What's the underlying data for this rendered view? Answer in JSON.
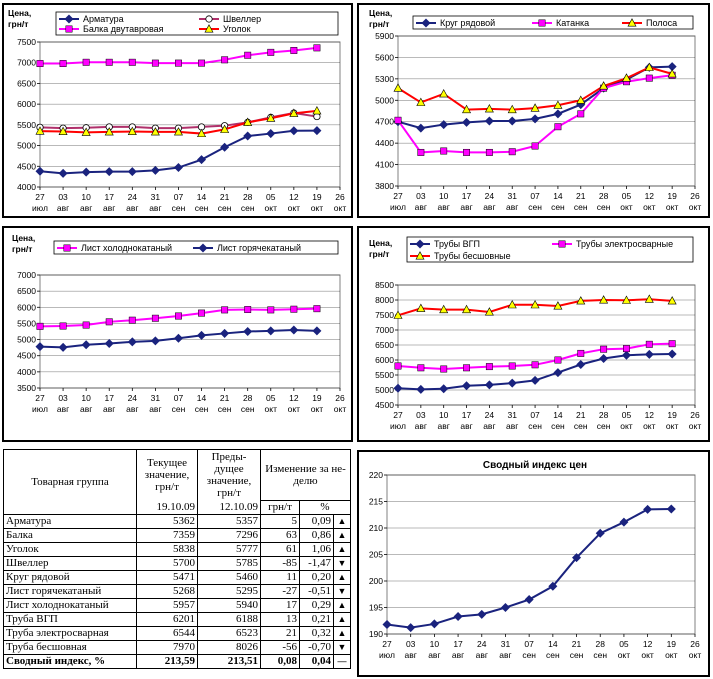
{
  "x_labels": [
    [
      "27",
      "июл"
    ],
    [
      "03",
      "авг"
    ],
    [
      "10",
      "авг"
    ],
    [
      "17",
      "авг"
    ],
    [
      "24",
      "авг"
    ],
    [
      "31",
      "авг"
    ],
    [
      "07",
      "сен"
    ],
    [
      "14",
      "сен"
    ],
    [
      "21",
      "сен"
    ],
    [
      "28",
      "сен"
    ],
    [
      "05",
      "окт"
    ],
    [
      "12",
      "окт"
    ],
    [
      "19",
      "окт"
    ],
    [
      "26",
      "окт"
    ]
  ],
  "chart_data": [
    {
      "type": "line",
      "ylabel": "Цена, грн/т",
      "ylim": [
        4000,
        7500
      ],
      "yticks": [
        4000,
        4500,
        5000,
        5500,
        6000,
        6500,
        7000,
        7500
      ],
      "legend": "top",
      "series": [
        {
          "name": "Арматура",
          "color": "#1a237e",
          "marker": "diamond",
          "values": [
            4380,
            4330,
            4360,
            4370,
            4370,
            4400,
            4470,
            4660,
            4960,
            5230,
            5290,
            5357,
            5362
          ]
        },
        {
          "name": "Швеллер",
          "color": "#b0306b",
          "marker": "circle",
          "values": [
            5440,
            5420,
            5430,
            5450,
            5450,
            5420,
            5420,
            5450,
            5480,
            5560,
            5680,
            5785,
            5700
          ]
        },
        {
          "name": "Балка двутавровая",
          "color": "#ff00ff",
          "marker": "square",
          "values": [
            6980,
            6980,
            7010,
            7010,
            7010,
            6990,
            6990,
            6990,
            7070,
            7180,
            7250,
            7296,
            7359
          ]
        },
        {
          "name": "Уголок",
          "color": "#ff0000",
          "marker": "triangle",
          "values": [
            5350,
            5340,
            5320,
            5330,
            5340,
            5330,
            5330,
            5290,
            5390,
            5560,
            5660,
            5777,
            5838
          ]
        }
      ]
    },
    {
      "type": "line",
      "ylabel": "Цена, грн/т",
      "ylim": [
        3800,
        5900
      ],
      "yticks": [
        3800,
        4100,
        4400,
        4700,
        5000,
        5300,
        5600,
        5900
      ],
      "legend": "top",
      "series": [
        {
          "name": "Круг рядовой",
          "color": "#1a237e",
          "marker": "diamond",
          "values": [
            4700,
            4610,
            4660,
            4690,
            4710,
            4710,
            4740,
            4810,
            4940,
            5170,
            5290,
            5460,
            5471
          ]
        },
        {
          "name": "Катанка",
          "color": "#ff00ff",
          "marker": "square",
          "values": [
            4720,
            4270,
            4290,
            4270,
            4270,
            4280,
            4360,
            4630,
            4810,
            5170,
            5260,
            5310,
            5350
          ]
        },
        {
          "name": "Полоса",
          "color": "#ff0000",
          "marker": "triangle",
          "values": [
            5170,
            4970,
            5090,
            4870,
            4880,
            4870,
            4890,
            4930,
            5000,
            5200,
            5310,
            5460,
            5370
          ]
        }
      ]
    },
    {
      "type": "line",
      "ylabel": "Цена, грн/т",
      "ylim": [
        3500,
        7000
      ],
      "yticks": [
        3500,
        4000,
        4500,
        5000,
        5500,
        6000,
        6500,
        7000
      ],
      "legend": "top",
      "series": [
        {
          "name": "Лист холоднокатаный",
          "color": "#ff00ff",
          "marker": "square",
          "values": [
            5410,
            5420,
            5450,
            5550,
            5600,
            5660,
            5730,
            5820,
            5920,
            5930,
            5920,
            5940,
            5957
          ]
        },
        {
          "name": "Лист горячекатаный",
          "color": "#1a237e",
          "marker": "diamond",
          "values": [
            4780,
            4760,
            4840,
            4880,
            4930,
            4960,
            5040,
            5130,
            5190,
            5250,
            5270,
            5295,
            5268
          ]
        }
      ]
    },
    {
      "type": "line",
      "ylabel": "Цена, грн/т",
      "ylim": [
        4500,
        8500
      ],
      "yticks": [
        4500,
        5000,
        5500,
        6000,
        6500,
        7000,
        7500,
        8000,
        8500
      ],
      "legend": "top",
      "series": [
        {
          "name": "Трубы ВГП",
          "color": "#1a237e",
          "marker": "diamond",
          "values": [
            5060,
            5020,
            5040,
            5140,
            5170,
            5230,
            5320,
            5580,
            5850,
            6050,
            6160,
            6188,
            6201
          ]
        },
        {
          "name": "Трубы электросварные",
          "color": "#ff00ff",
          "marker": "square",
          "values": [
            5800,
            5740,
            5700,
            5740,
            5780,
            5800,
            5840,
            6000,
            6220,
            6360,
            6380,
            6523,
            6544
          ]
        },
        {
          "name": "Трубы бесшовные",
          "color": "#ff0000",
          "marker": "triangle",
          "values": [
            7490,
            7720,
            7680,
            7680,
            7600,
            7840,
            7840,
            7800,
            7970,
            8000,
            7990,
            8026,
            7970
          ]
        }
      ]
    },
    {
      "type": "line",
      "title": "Сводный индекс цен",
      "ylim": [
        190,
        220
      ],
      "yticks": [
        190,
        195,
        200,
        205,
        210,
        215,
        220
      ],
      "series": [
        {
          "name": "Сводный индекс",
          "color": "#1a237e",
          "marker": "diamond",
          "values": [
            191.8,
            191.2,
            191.9,
            193.3,
            193.7,
            195,
            196.5,
            199,
            204.4,
            209,
            211.1,
            213.51,
            213.59
          ]
        }
      ]
    }
  ],
  "table": {
    "headers": {
      "group": "Товарная группа",
      "current": [
        "Текущее",
        "значение,",
        "грн/т"
      ],
      "previous": [
        "Преды-",
        "дущее",
        "значение,",
        "грн/т"
      ],
      "change": [
        "Изменение за не-",
        "делю"
      ],
      "current_date": "19.10.09",
      "previous_date": "12.10.09",
      "unit_abs": "грн/т",
      "unit_pct": "%"
    },
    "rows": [
      {
        "name": "Арматура",
        "current": "5362",
        "previous": "5357",
        "abs": "5",
        "pct": "0,09",
        "arrow": "▲"
      },
      {
        "name": "Балка",
        "current": "7359",
        "previous": "7296",
        "abs": "63",
        "pct": "0,86",
        "arrow": "▲"
      },
      {
        "name": "Уголок",
        "current": "5838",
        "previous": "5777",
        "abs": "61",
        "pct": "1,06",
        "arrow": "▲"
      },
      {
        "name": "Швеллер",
        "current": "5700",
        "previous": "5785",
        "abs": "-85",
        "pct": "-1,47",
        "arrow": "▼"
      },
      {
        "name": "Круг рядовой",
        "current": "5471",
        "previous": "5460",
        "abs": "11",
        "pct": "0,20",
        "arrow": "▲"
      },
      {
        "name": "Лист горячекатаный",
        "current": "5268",
        "previous": "5295",
        "abs": "-27",
        "pct": "-0,51",
        "arrow": "▼"
      },
      {
        "name": "Лист холоднокатаный",
        "current": "5957",
        "previous": "5940",
        "abs": "17",
        "pct": "0,29",
        "arrow": "▲"
      },
      {
        "name": "Труба ВГП",
        "current": "6201",
        "previous": "6188",
        "abs": "13",
        "pct": "0,21",
        "arrow": "▲"
      },
      {
        "name": "Труба электросварная",
        "current": "6544",
        "previous": "6523",
        "abs": "21",
        "pct": "0,32",
        "arrow": "▲"
      },
      {
        "name": "Труба бесшовная",
        "current": "7970",
        "previous": "8026",
        "abs": "-56",
        "pct": "-0,70",
        "arrow": "▼"
      }
    ],
    "total": {
      "name": "Сводный индекс, %",
      "current": "213,59",
      "previous": "213,51",
      "abs": "0,08",
      "pct": "0,04",
      "arrow": "—"
    }
  }
}
